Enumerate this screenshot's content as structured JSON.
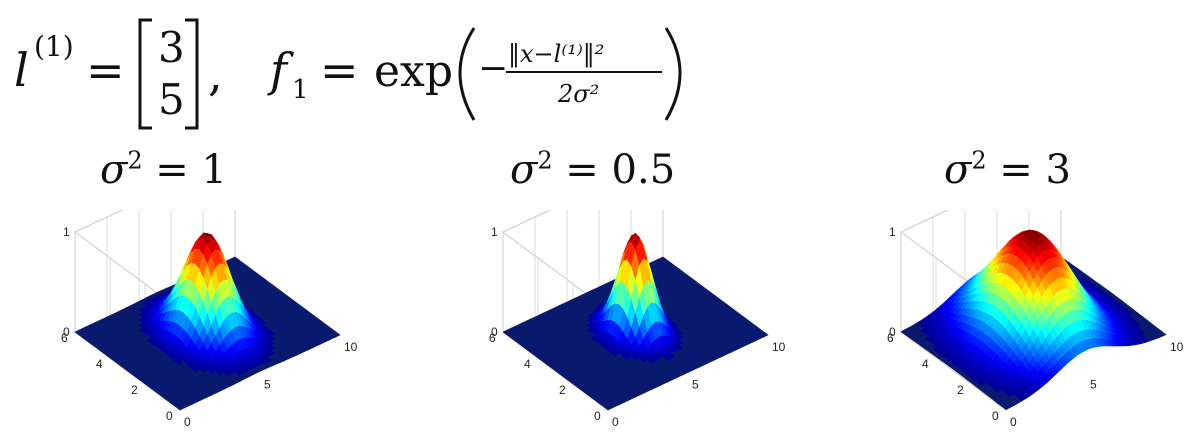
{
  "formula": {
    "landmark_symbol": "l",
    "landmark_superscript": "(1)",
    "equals": "=",
    "landmark_vector": [
      "3",
      "5"
    ],
    "separator": ",",
    "feature_symbol": "f",
    "feature_subscript": "1",
    "exp_text": "exp",
    "fraction_numerator": "‖x−l⁽¹⁾‖²",
    "fraction_denominator": "2σ²",
    "minus": "−"
  },
  "panels": [
    {
      "sigma_sq_label": "1",
      "sigma_sq": 1
    },
    {
      "sigma_sq_label": "0.5",
      "sigma_sq": 0.5
    },
    {
      "sigma_sq_label": "3",
      "sigma_sq": 3
    }
  ],
  "axes": {
    "z_ticks": [
      "0",
      "1"
    ],
    "x_ticks": [
      "0",
      "2",
      "4",
      "6"
    ],
    "y_ticks": [
      "0",
      "5",
      "10"
    ],
    "x_range": [
      0,
      6
    ],
    "y_range": [
      0,
      10
    ],
    "z_range": [
      0,
      1
    ]
  },
  "chart_data": {
    "type": "surface",
    "function": "exp(-||x - l||^2 / (2 sigma^2))",
    "landmark": [
      3,
      5
    ],
    "series": [
      {
        "sigma_sq": 1
      },
      {
        "sigma_sq": 0.5
      },
      {
        "sigma_sq": 3
      }
    ],
    "colormap": "jet"
  }
}
